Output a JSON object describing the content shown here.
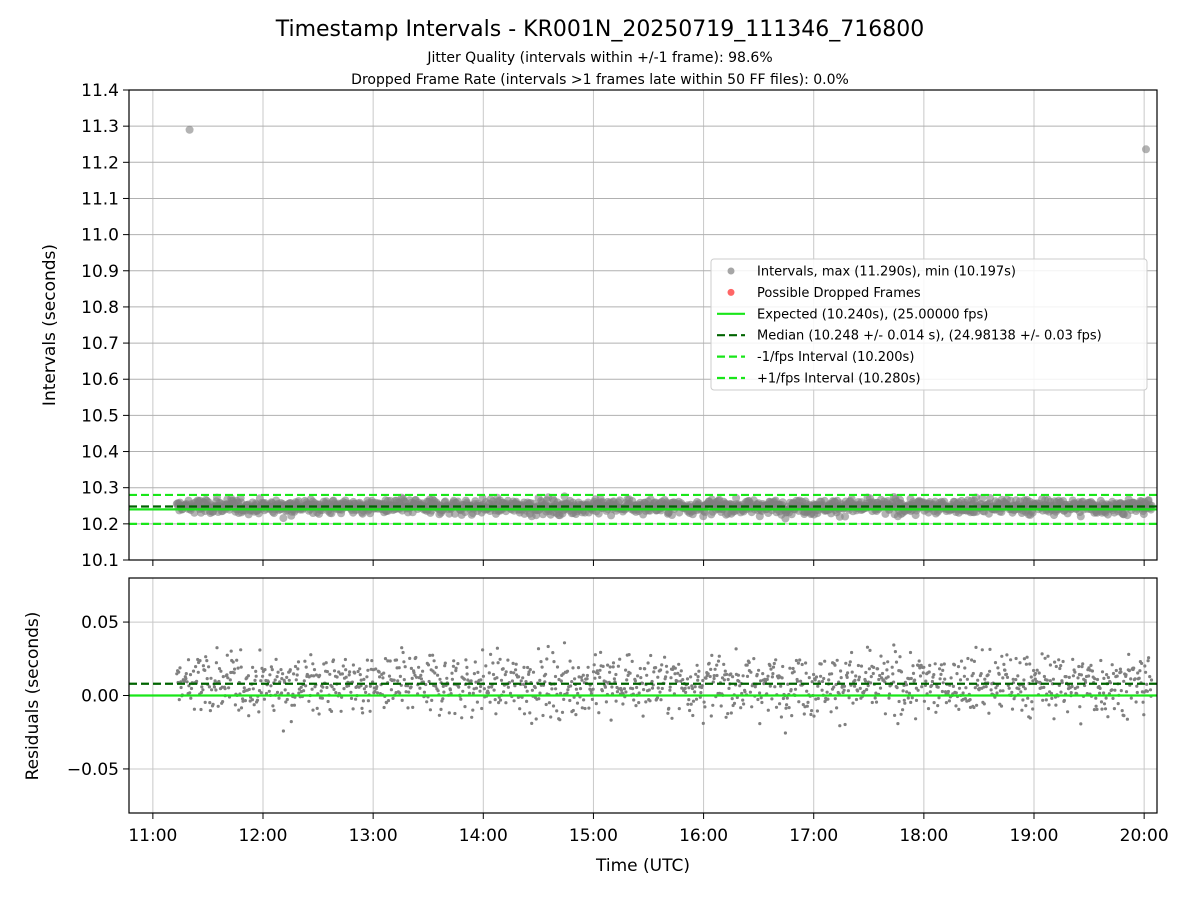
{
  "figure": {
    "title": "Timestamp Intervals - KR001N_20250719_111346_716800",
    "subtitle_1": "Jitter Quality (intervals within +/-1 frame): 98.6%",
    "subtitle_2": "Dropped Frame Rate (intervals >1 frames late within 50 FF files): 0.0%"
  },
  "colors": {
    "points": "#808080",
    "points_legend": "#a6a6a6",
    "dropped": "#ff6666",
    "expected": "#19e619",
    "median": "#006400",
    "fps_bounds": "#19e619",
    "grid": "#c8c8c8"
  },
  "chart_data": [
    {
      "type": "scatter",
      "ylabel": "Intervals (seconds)",
      "ylim": [
        10.1,
        11.4
      ],
      "yticks": [
        "10.1",
        "10.2",
        "10.3",
        "10.4",
        "10.5",
        "10.6",
        "10.7",
        "10.8",
        "10.9",
        "11.0",
        "11.1",
        "11.2",
        "11.3",
        "11.4"
      ],
      "grid": true,
      "legend_position": "center-right",
      "outliers": [
        {
          "x": "11:20",
          "y": 11.29
        },
        {
          "x": "20:01",
          "y": 11.236
        }
      ],
      "lines": [
        {
          "name": "Expected (10.240s), (25.00000 fps)",
          "y": 10.24,
          "style": "solid"
        },
        {
          "name": "Median (10.248 +/- 0.014 s), (24.98138 +/- 0.03 fps)",
          "y": 10.248,
          "style": "dashed"
        },
        {
          "name": "-1/fps Interval (10.200s)",
          "y": 10.2,
          "style": "dashed"
        },
        {
          "name": "+1/fps Interval (10.280s)",
          "y": 10.28,
          "style": "dashed"
        }
      ],
      "legend": [
        {
          "label": "Intervals, max (11.290s), min (10.197s)",
          "kind": "dot",
          "color_key": "points_legend"
        },
        {
          "label": "Possible Dropped Frames",
          "kind": "dot",
          "color_key": "dropped"
        },
        {
          "label": "Expected (10.240s), (25.00000 fps)",
          "kind": "solid",
          "color_key": "expected"
        },
        {
          "label": "Median (10.248 +/- 0.014 s), (24.98138 +/- 0.03 fps)",
          "kind": "dashed",
          "color_key": "median"
        },
        {
          "label": "-1/fps Interval (10.200s)",
          "kind": "dashed",
          "color_key": "fps_bounds"
        },
        {
          "label": "+1/fps Interval (10.280s)",
          "kind": "dashed",
          "color_key": "fps_bounds"
        }
      ],
      "series_summary": {
        "start": "11:13",
        "end": "20:04",
        "center": 10.248,
        "spread": 0.014
      }
    },
    {
      "type": "scatter",
      "xlabel": "Time (UTC)",
      "ylabel": "Residuals (seconds)",
      "ylim": [
        -0.08,
        0.08
      ],
      "yticks": [
        -0.05,
        0.0,
        0.05
      ],
      "ytick_labels": [
        "−0.05",
        "0.00",
        "0.05"
      ],
      "xticks": [
        "11:00",
        "12:00",
        "13:00",
        "14:00",
        "15:00",
        "16:00",
        "17:00",
        "18:00",
        "19:00",
        "20:00"
      ],
      "xlim": [
        "10:47",
        "20:07"
      ],
      "grid": true,
      "lines": [
        {
          "name": "Expected",
          "y": 0.0,
          "style": "solid"
        },
        {
          "name": "Median",
          "y": 0.008,
          "style": "dashed"
        }
      ],
      "series_summary": {
        "start": "11:13",
        "end": "20:04",
        "center": 0.008,
        "spread": 0.014
      }
    }
  ]
}
